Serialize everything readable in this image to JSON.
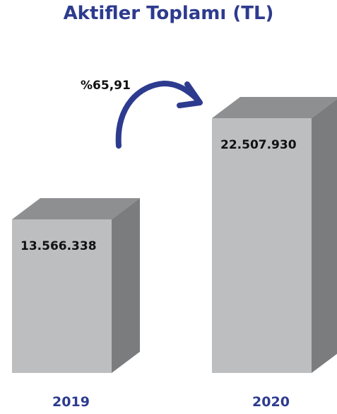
{
  "chart_data": {
    "type": "bar",
    "title": "Aktifler Toplamı (TL)",
    "categories": [
      "2019",
      "2020"
    ],
    "values": [
      13566338,
      22507930
    ],
    "value_labels": [
      "13.566.338",
      "22.507.930"
    ],
    "growth_label": "%65,91",
    "ylim": [
      0,
      30000000
    ],
    "grid": false,
    "legend": "none"
  },
  "colors": {
    "title": "#2d3b8f",
    "bar_front": "#bdbec0",
    "bar_top": "#8e8f91",
    "bar_side": "#7b7c7e",
    "arrow": "#2d3b8f",
    "x_label": "#2d3b8f"
  }
}
